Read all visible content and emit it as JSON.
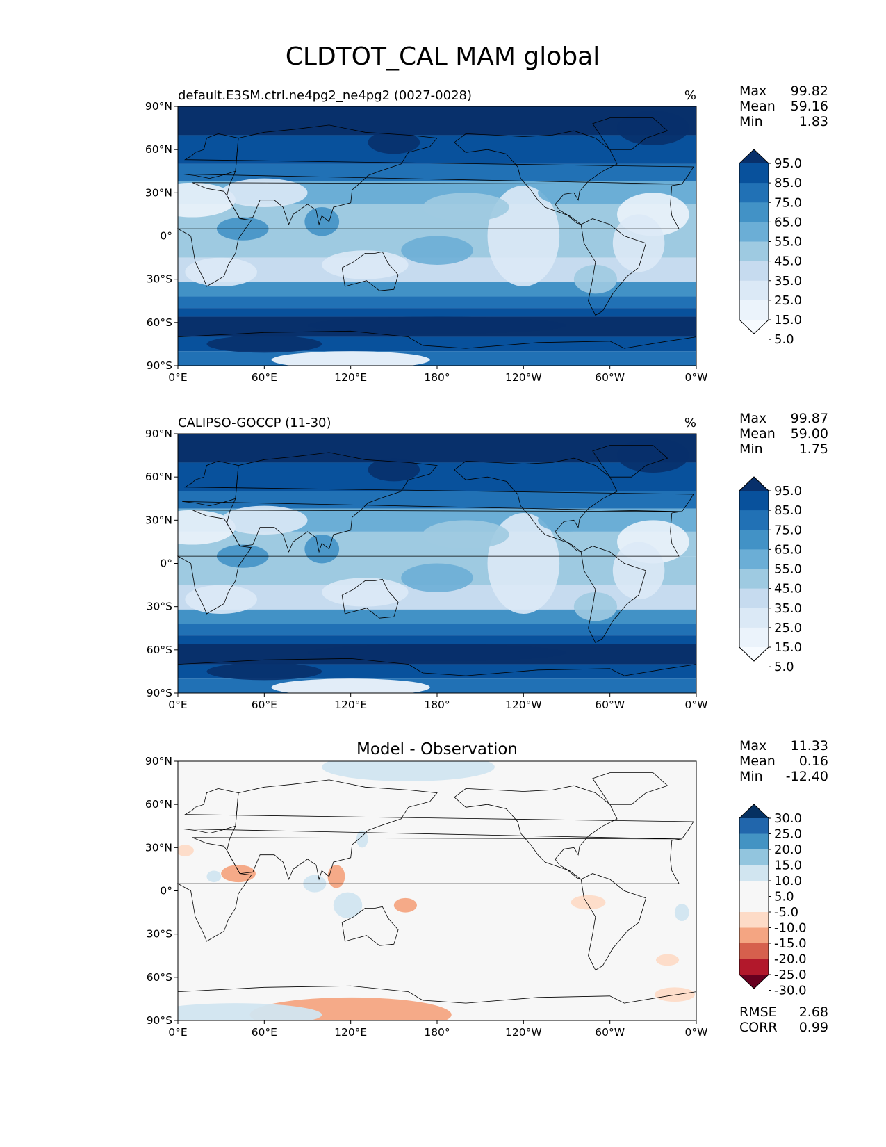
{
  "suptitle": "CLDTOT_CAL MAM global",
  "chart_data": [
    {
      "type": "heatmap",
      "title": "default.E3SM.ctrl.ne4pg2_ne4pg2 (0027-0028)",
      "units": "%",
      "x_ticks": [
        "0°E",
        "60°E",
        "120°E",
        "180°",
        "120°W",
        "60°W",
        "0°W"
      ],
      "y_ticks": [
        "90°N",
        "60°N",
        "30°N",
        "0°",
        "30°S",
        "60°S",
        "90°S"
      ],
      "stats": [
        {
          "label": "Max",
          "value": "99.82"
        },
        {
          "label": "Mean",
          "value": "59.16"
        },
        {
          "label": "Min",
          "value": "1.83"
        }
      ],
      "colorbar": {
        "labels": [
          "95.0",
          "85.0",
          "75.0",
          "65.0",
          "55.0",
          "45.0",
          "35.0",
          "25.0",
          "15.0",
          "5.0"
        ],
        "colors": [
          "#08306b",
          "#08519c",
          "#2171b5",
          "#4292c6",
          "#6baed6",
          "#9ecae1",
          "#c6dbef",
          "#dbe9f6",
          "#ebf3fb",
          "#f7fbff"
        ],
        "extend": "both"
      },
      "colormap": "Blues"
    },
    {
      "type": "heatmap",
      "title": "CALIPSO-GOCCP (11-30)",
      "units": "%",
      "x_ticks": [
        "0°E",
        "60°E",
        "120°E",
        "180°",
        "120°W",
        "60°W",
        "0°W"
      ],
      "y_ticks": [
        "90°N",
        "60°N",
        "30°N",
        "0°",
        "30°S",
        "60°S",
        "90°S"
      ],
      "stats": [
        {
          "label": "Max",
          "value": "99.87"
        },
        {
          "label": "Mean",
          "value": "59.00"
        },
        {
          "label": "Min",
          "value": "1.75"
        }
      ],
      "colorbar": {
        "labels": [
          "95.0",
          "85.0",
          "75.0",
          "65.0",
          "55.0",
          "45.0",
          "35.0",
          "25.0",
          "15.0",
          "5.0"
        ],
        "colors": [
          "#08306b",
          "#08519c",
          "#2171b5",
          "#4292c6",
          "#6baed6",
          "#9ecae1",
          "#c6dbef",
          "#dbe9f6",
          "#ebf3fb",
          "#f7fbff"
        ],
        "extend": "both"
      },
      "colormap": "Blues"
    },
    {
      "type": "heatmap",
      "title": "Model - Observation",
      "units": "",
      "x_ticks": [
        "0°E",
        "60°E",
        "120°E",
        "180°",
        "120°W",
        "60°W",
        "0°W"
      ],
      "y_ticks": [
        "90°N",
        "60°N",
        "30°N",
        "0°",
        "30°S",
        "60°S",
        "90°S"
      ],
      "stats": [
        {
          "label": "Max",
          "value": "11.33"
        },
        {
          "label": "Mean",
          "value": "0.16"
        },
        {
          "label": "Min",
          "value": "-12.40"
        }
      ],
      "extra_stats": [
        {
          "label": "RMSE",
          "value": "2.68"
        },
        {
          "label": "CORR",
          "value": "0.99"
        }
      ],
      "colorbar": {
        "labels": [
          "30.0",
          "25.0",
          "20.0",
          "15.0",
          "10.0",
          "5.0",
          "-5.0",
          "-10.0",
          "-15.0",
          "-20.0",
          "-25.0",
          "-30.0"
        ],
        "colors": [
          "#053061",
          "#2166ac",
          "#4393c3",
          "#92c5de",
          "#d1e5f0",
          "#f7f7f7",
          "#f7f7f7",
          "#fddbc7",
          "#f4a582",
          "#d6604d",
          "#b2182b",
          "#67001f"
        ],
        "extend": "both"
      },
      "colormap": "RdBu_r"
    }
  ]
}
